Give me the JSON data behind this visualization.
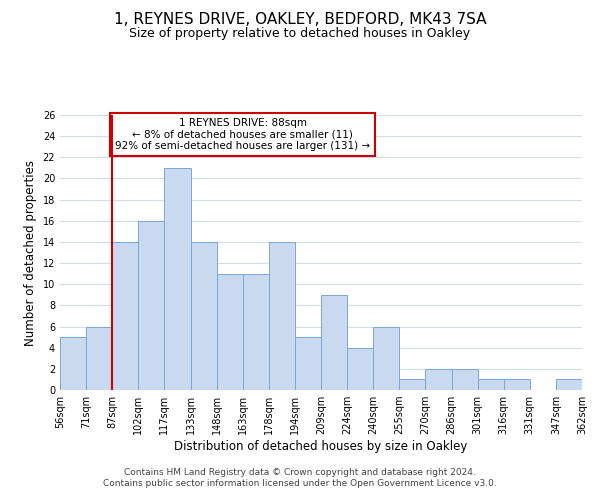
{
  "title": "1, REYNES DRIVE, OAKLEY, BEDFORD, MK43 7SA",
  "subtitle": "Size of property relative to detached houses in Oakley",
  "xlabel": "Distribution of detached houses by size in Oakley",
  "ylabel": "Number of detached properties",
  "bin_labels": [
    "56sqm",
    "71sqm",
    "87sqm",
    "102sqm",
    "117sqm",
    "133sqm",
    "148sqm",
    "163sqm",
    "178sqm",
    "194sqm",
    "209sqm",
    "224sqm",
    "240sqm",
    "255sqm",
    "270sqm",
    "286sqm",
    "301sqm",
    "316sqm",
    "331sqm",
    "347sqm",
    "362sqm"
  ],
  "bar_values": [
    5,
    6,
    14,
    16,
    21,
    14,
    11,
    11,
    14,
    5,
    9,
    4,
    6,
    1,
    2,
    2,
    1,
    1,
    0,
    1
  ],
  "bar_color": "#c9d9f0",
  "bar_edge_color": "#7ba7d4",
  "vline_x_index": 2,
  "vline_color": "#cc0000",
  "annotation_title": "1 REYNES DRIVE: 88sqm",
  "annotation_line2": "← 8% of detached houses are smaller (11)",
  "annotation_line3": "92% of semi-detached houses are larger (131) →",
  "annotation_box_color": "#cc0000",
  "annotation_bg_color": "#ffffff",
  "ylim": [
    0,
    26
  ],
  "yticks": [
    0,
    2,
    4,
    6,
    8,
    10,
    12,
    14,
    16,
    18,
    20,
    22,
    24,
    26
  ],
  "footer_line1": "Contains HM Land Registry data © Crown copyright and database right 2024.",
  "footer_line2": "Contains public sector information licensed under the Open Government Licence v3.0.",
  "bg_color": "#ffffff",
  "grid_color": "#d0dce8",
  "title_fontsize": 11,
  "subtitle_fontsize": 9,
  "axis_label_fontsize": 8.5,
  "tick_fontsize": 7,
  "annotation_fontsize": 7.5,
  "footer_fontsize": 6.5
}
